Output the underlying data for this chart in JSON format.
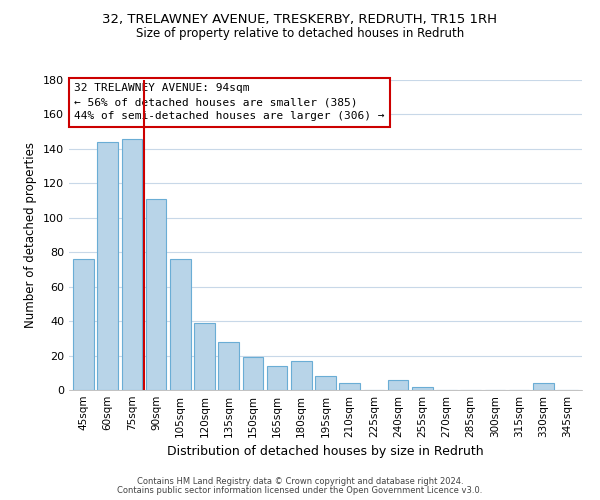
{
  "title": "32, TRELAWNEY AVENUE, TRESKERBY, REDRUTH, TR15 1RH",
  "subtitle": "Size of property relative to detached houses in Redruth",
  "xlabel": "Distribution of detached houses by size in Redruth",
  "ylabel": "Number of detached properties",
  "bar_color": "#b8d4e8",
  "bar_edge_color": "#6aadd5",
  "highlight_color": "#cc0000",
  "categories": [
    "45sqm",
    "60sqm",
    "75sqm",
    "90sqm",
    "105sqm",
    "120sqm",
    "135sqm",
    "150sqm",
    "165sqm",
    "180sqm",
    "195sqm",
    "210sqm",
    "225sqm",
    "240sqm",
    "255sqm",
    "270sqm",
    "285sqm",
    "300sqm",
    "315sqm",
    "330sqm",
    "345sqm"
  ],
  "values": [
    76,
    144,
    146,
    111,
    76,
    39,
    28,
    19,
    14,
    17,
    8,
    4,
    0,
    6,
    2,
    0,
    0,
    0,
    0,
    4,
    0
  ],
  "red_line_x": 2.5,
  "ylim": [
    0,
    180
  ],
  "yticks": [
    0,
    20,
    40,
    60,
    80,
    100,
    120,
    140,
    160,
    180
  ],
  "annotation_title": "32 TRELAWNEY AVENUE: 94sqm",
  "annotation_line1": "← 56% of detached houses are smaller (385)",
  "annotation_line2": "44% of semi-detached houses are larger (306) →",
  "footer_line1": "Contains HM Land Registry data © Crown copyright and database right 2024.",
  "footer_line2": "Contains public sector information licensed under the Open Government Licence v3.0.",
  "background_color": "#ffffff",
  "grid_color": "#c8d8e8"
}
